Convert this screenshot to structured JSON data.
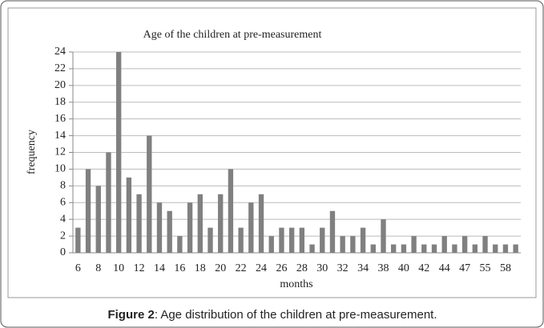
{
  "chart_data": {
    "type": "bar",
    "title": "Age of the children at pre-measurement",
    "x_label": "months",
    "y_label": "frequency",
    "categories": [
      "6",
      null,
      "8",
      null,
      "10",
      null,
      "12",
      null,
      "14",
      null,
      "16",
      null,
      "18",
      null,
      "20",
      null,
      "22",
      null,
      "24",
      null,
      "26",
      null,
      "28",
      null,
      "30",
      null,
      "32",
      null,
      "34",
      null,
      "38",
      null,
      "40",
      null,
      "42",
      null,
      "44",
      null,
      "47",
      null,
      "55",
      null,
      "58",
      null
    ],
    "values": [
      3,
      10,
      8,
      12,
      24,
      9,
      7,
      14,
      6,
      5,
      2,
      6,
      7,
      3,
      7,
      10,
      3,
      6,
      7,
      2,
      3,
      3,
      3,
      1,
      3,
      5,
      2,
      2,
      3,
      1,
      4,
      1,
      1,
      2,
      1,
      1,
      2,
      1,
      2,
      1,
      2,
      1,
      1,
      1
    ],
    "color": "#808080",
    "ylim": [
      0,
      24
    ],
    "yticks": [
      0,
      2,
      4,
      6,
      8,
      10,
      12,
      14,
      16,
      18,
      20,
      22,
      24
    ],
    "grid": true
  },
  "caption": {
    "label": "Figure 2",
    "text": ": Age distribution of the children at pre-measurement."
  }
}
